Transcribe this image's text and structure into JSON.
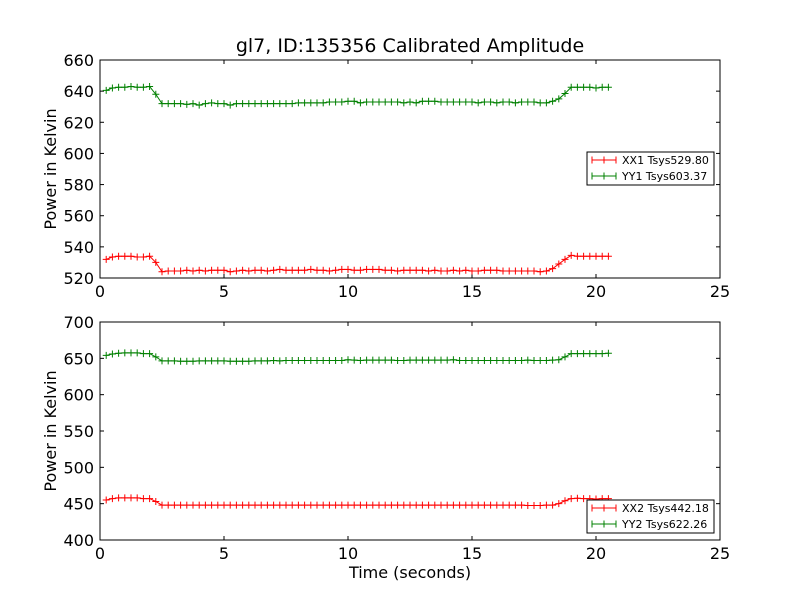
{
  "chart_data": [
    {
      "type": "line",
      "title": "gl7, ID:135356 Calibrated Amplitude",
      "xlabel": "",
      "ylabel": "Power in Kelvin",
      "xlim": [
        0,
        25
      ],
      "ylim": [
        520,
        660
      ],
      "xticks": [
        0,
        5,
        10,
        15,
        20,
        25
      ],
      "yticks": [
        520,
        540,
        560,
        580,
        600,
        620,
        640,
        660
      ],
      "legend_placement": "center-right",
      "grid": false,
      "marker": "+",
      "series": [
        {
          "name": "XX1 Tsys529.80",
          "color": "#ff0000",
          "x": [
            0.25,
            0.5,
            0.75,
            1.0,
            1.25,
            1.5,
            1.75,
            2.0,
            2.25,
            2.5,
            2.75,
            3.0,
            3.25,
            3.5,
            3.75,
            4.0,
            4.25,
            4.5,
            4.75,
            5.0,
            5.25,
            5.5,
            5.75,
            6.0,
            6.25,
            6.5,
            6.75,
            7.0,
            7.25,
            7.5,
            7.75,
            8.0,
            8.25,
            8.5,
            8.75,
            9.0,
            9.25,
            9.5,
            9.75,
            10.0,
            10.25,
            10.5,
            10.75,
            11.0,
            11.25,
            11.5,
            11.75,
            12.0,
            12.25,
            12.5,
            12.75,
            13.0,
            13.25,
            13.5,
            13.75,
            14.0,
            14.25,
            14.5,
            14.75,
            15.0,
            15.25,
            15.5,
            15.75,
            16.0,
            16.25,
            16.5,
            16.75,
            17.0,
            17.25,
            17.5,
            17.75,
            18.0,
            18.25,
            18.5,
            18.75,
            19.0,
            19.25,
            19.5,
            19.75,
            20.0,
            20.25,
            20.5
          ],
          "y": [
            532,
            533.5,
            534,
            534,
            534,
            533.5,
            533.5,
            534,
            530,
            524,
            524.5,
            524.5,
            524.5,
            525,
            524.5,
            525,
            524.5,
            525,
            525,
            525,
            524,
            524.5,
            525,
            524.5,
            525,
            525,
            524.5,
            525,
            525.5,
            525,
            525,
            525,
            525,
            525.5,
            525,
            525,
            524.5,
            525,
            525.5,
            525.5,
            525,
            525,
            525.5,
            525.5,
            525.5,
            525,
            525,
            524.5,
            525,
            525,
            525,
            525,
            524.5,
            525,
            524.5,
            524.5,
            525,
            524.5,
            525,
            524.5,
            524.5,
            525,
            525,
            525,
            524.5,
            524.5,
            524.5,
            524.5,
            524.5,
            524.5,
            524,
            524.5,
            526,
            529,
            532,
            534.5,
            534,
            534,
            534,
            534,
            534,
            534
          ]
        },
        {
          "name": "YY1 Tsys603.37",
          "color": "#008000",
          "x": [
            0.25,
            0.5,
            0.75,
            1.0,
            1.25,
            1.5,
            1.75,
            2.0,
            2.25,
            2.5,
            2.75,
            3.0,
            3.25,
            3.5,
            3.75,
            4.0,
            4.25,
            4.5,
            4.75,
            5.0,
            5.25,
            5.5,
            5.75,
            6.0,
            6.25,
            6.5,
            6.75,
            7.0,
            7.25,
            7.5,
            7.75,
            8.0,
            8.25,
            8.5,
            8.75,
            9.0,
            9.25,
            9.5,
            9.75,
            10.0,
            10.25,
            10.5,
            10.75,
            11.0,
            11.25,
            11.5,
            11.75,
            12.0,
            12.25,
            12.5,
            12.75,
            13.0,
            13.25,
            13.5,
            13.75,
            14.0,
            14.25,
            14.5,
            14.75,
            15.0,
            15.25,
            15.5,
            15.75,
            16.0,
            16.25,
            16.5,
            16.75,
            17.0,
            17.25,
            17.5,
            17.75,
            18.0,
            18.25,
            18.5,
            18.75,
            19.0,
            19.25,
            19.5,
            19.75,
            20.0,
            20.25,
            20.5
          ],
          "y": [
            640.5,
            642,
            642.5,
            642.5,
            643,
            642.5,
            642.5,
            643,
            638,
            632,
            632,
            632,
            632,
            631.5,
            632,
            631,
            632,
            632.5,
            632,
            632,
            631,
            632,
            632,
            632,
            632,
            632,
            632,
            632,
            632,
            632,
            632,
            632.5,
            632.5,
            632.5,
            632.5,
            632.5,
            633,
            633,
            633,
            633.5,
            633.5,
            632.5,
            633,
            633,
            633,
            633,
            633,
            633,
            632.5,
            633,
            632.5,
            633.5,
            633.5,
            633.5,
            633,
            633,
            633,
            633,
            633,
            633,
            632.5,
            633,
            633,
            632.5,
            633,
            633,
            632.5,
            633,
            633,
            633,
            632.5,
            632.5,
            633.5,
            635,
            638.5,
            642.5,
            642.5,
            642.5,
            642.5,
            642,
            642.5,
            642.5
          ]
        }
      ]
    },
    {
      "type": "line",
      "title": "",
      "xlabel": "Time (seconds)",
      "ylabel": "Power in Kelvin",
      "xlim": [
        0,
        25
      ],
      "ylim": [
        400,
        700
      ],
      "xticks": [
        0,
        5,
        10,
        15,
        20,
        25
      ],
      "yticks": [
        400,
        450,
        500,
        550,
        600,
        650,
        700
      ],
      "legend_placement": "lower-right",
      "grid": false,
      "marker": "+",
      "series": [
        {
          "name": "XX2 Tsys442.18",
          "color": "#ff0000",
          "x": [
            0.25,
            0.5,
            0.75,
            1.0,
            1.25,
            1.5,
            1.75,
            2.0,
            2.25,
            2.5,
            2.75,
            3.0,
            3.25,
            3.5,
            3.75,
            4.0,
            4.25,
            4.5,
            4.75,
            5.0,
            5.25,
            5.5,
            5.75,
            6.0,
            6.25,
            6.5,
            6.75,
            7.0,
            7.25,
            7.5,
            7.75,
            8.0,
            8.25,
            8.5,
            8.75,
            9.0,
            9.25,
            9.5,
            9.75,
            10.0,
            10.25,
            10.5,
            10.75,
            11.0,
            11.25,
            11.5,
            11.75,
            12.0,
            12.25,
            12.5,
            12.75,
            13.0,
            13.25,
            13.5,
            13.75,
            14.0,
            14.25,
            14.5,
            14.75,
            15.0,
            15.25,
            15.5,
            15.75,
            16.0,
            16.25,
            16.5,
            16.75,
            17.0,
            17.25,
            17.5,
            17.75,
            18.0,
            18.25,
            18.5,
            18.75,
            19.0,
            19.25,
            19.5,
            19.75,
            20.0,
            20.25,
            20.5
          ],
          "y": [
            455,
            457,
            458,
            458,
            458,
            458,
            457,
            457,
            453,
            448,
            448,
            448,
            448,
            448,
            448,
            448,
            448,
            448,
            448,
            448,
            448,
            448,
            448,
            448,
            448,
            448,
            448,
            448,
            448,
            448,
            448,
            448,
            448,
            448,
            448,
            448,
            448,
            448,
            448,
            448,
            448,
            448,
            448,
            448,
            448,
            448,
            448,
            448,
            448,
            448,
            448,
            448,
            448,
            448,
            448,
            448,
            448,
            448,
            448,
            448,
            448,
            448,
            448,
            448,
            448,
            448,
            448,
            448,
            447.5,
            447.5,
            447.5,
            448,
            448,
            450,
            454,
            457,
            457.5,
            457,
            457,
            456.5,
            457,
            457
          ]
        },
        {
          "name": "YY2 Tsys622.26",
          "color": "#008000",
          "x": [
            0.25,
            0.5,
            0.75,
            1.0,
            1.25,
            1.5,
            1.75,
            2.0,
            2.25,
            2.5,
            2.75,
            3.0,
            3.25,
            3.5,
            3.75,
            4.0,
            4.25,
            4.5,
            4.75,
            5.0,
            5.25,
            5.5,
            5.75,
            6.0,
            6.25,
            6.5,
            6.75,
            7.0,
            7.25,
            7.5,
            7.75,
            8.0,
            8.25,
            8.5,
            8.75,
            9.0,
            9.25,
            9.5,
            9.75,
            10.0,
            10.25,
            10.5,
            10.75,
            11.0,
            11.25,
            11.5,
            11.75,
            12.0,
            12.25,
            12.5,
            12.75,
            13.0,
            13.25,
            13.5,
            13.75,
            14.0,
            14.25,
            14.5,
            14.75,
            15.0,
            15.25,
            15.5,
            15.75,
            16.0,
            16.25,
            16.5,
            16.75,
            17.0,
            17.25,
            17.5,
            17.75,
            18.0,
            18.25,
            18.5,
            18.75,
            19.0,
            19.25,
            19.5,
            19.75,
            20.0,
            20.25,
            20.5
          ],
          "y": [
            654,
            656,
            657,
            657.5,
            657.5,
            657.5,
            656.5,
            656.5,
            652,
            646.5,
            646.5,
            646.5,
            646,
            646,
            646,
            646.5,
            646.5,
            646.5,
            646.5,
            646.5,
            646,
            646,
            646,
            646,
            646.5,
            646.5,
            646.5,
            647,
            646.5,
            647,
            647,
            647,
            647,
            647,
            647,
            647,
            647,
            647,
            647,
            648,
            647.5,
            647,
            647.5,
            647.5,
            647.5,
            647.5,
            647.5,
            647,
            647,
            647.5,
            647.5,
            647.5,
            647.5,
            647.5,
            647.5,
            647.5,
            648,
            647,
            647,
            647,
            647,
            647,
            647,
            647,
            647,
            647,
            647,
            647,
            647.5,
            647,
            647,
            647,
            647.5,
            648,
            652,
            656.5,
            656.5,
            656.5,
            656.5,
            656.5,
            656.5,
            657
          ]
        }
      ]
    }
  ]
}
